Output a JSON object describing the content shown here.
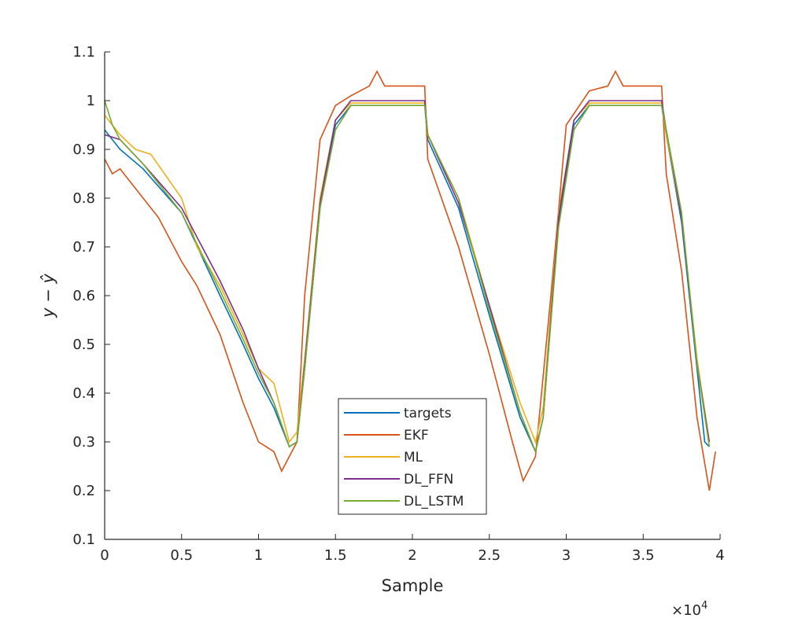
{
  "chart_data": {
    "type": "line",
    "xlabel": "Sample",
    "ylabel": "y − ŷ",
    "x_multiplier": "×10",
    "x_multiplier_exp": "4",
    "xlim": [
      0,
      4
    ],
    "ylim": [
      0.1,
      1.1
    ],
    "xticks": [
      "0",
      "0.5",
      "1",
      "1.5",
      "2",
      "2.5",
      "3",
      "3.5",
      "4"
    ],
    "yticks": [
      "0.1",
      "0.2",
      "0.3",
      "0.4",
      "0.5",
      "0.6",
      "0.7",
      "0.8",
      "0.9",
      "1",
      "1.1"
    ],
    "grid": false,
    "legend_position": "bottom-center",
    "series": [
      {
        "name": "targets",
        "color": "#0072BD",
        "points": [
          [
            0,
            0.94
          ],
          [
            0.1,
            0.9
          ],
          [
            0.25,
            0.86
          ],
          [
            0.5,
            0.77
          ],
          [
            0.75,
            0.6
          ],
          [
            0.9,
            0.5
          ],
          [
            1.0,
            0.43
          ],
          [
            1.1,
            0.37
          ],
          [
            1.2,
            0.29
          ],
          [
            1.25,
            0.3
          ],
          [
            1.3,
            0.45
          ],
          [
            1.4,
            0.78
          ],
          [
            1.5,
            0.95
          ],
          [
            1.6,
            0.99
          ],
          [
            2.08,
            0.99
          ],
          [
            2.1,
            0.92
          ],
          [
            2.3,
            0.78
          ],
          [
            2.5,
            0.56
          ],
          [
            2.7,
            0.35
          ],
          [
            2.8,
            0.28
          ],
          [
            2.85,
            0.35
          ],
          [
            2.95,
            0.75
          ],
          [
            3.05,
            0.95
          ],
          [
            3.15,
            0.99
          ],
          [
            3.62,
            0.99
          ],
          [
            3.65,
            0.93
          ],
          [
            3.75,
            0.75
          ],
          [
            3.85,
            0.45
          ],
          [
            3.9,
            0.3
          ],
          [
            3.93,
            0.29
          ]
        ]
      },
      {
        "name": "EKF",
        "color": "#D95319",
        "points": [
          [
            0,
            0.88
          ],
          [
            0.05,
            0.85
          ],
          [
            0.1,
            0.86
          ],
          [
            0.25,
            0.8
          ],
          [
            0.35,
            0.76
          ],
          [
            0.5,
            0.67
          ],
          [
            0.6,
            0.62
          ],
          [
            0.75,
            0.52
          ],
          [
            0.9,
            0.38
          ],
          [
            1.0,
            0.3
          ],
          [
            1.1,
            0.28
          ],
          [
            1.15,
            0.24
          ],
          [
            1.2,
            0.27
          ],
          [
            1.25,
            0.3
          ],
          [
            1.3,
            0.6
          ],
          [
            1.4,
            0.92
          ],
          [
            1.5,
            0.99
          ],
          [
            1.6,
            1.01
          ],
          [
            1.72,
            1.03
          ],
          [
            1.77,
            1.06
          ],
          [
            1.82,
            1.03
          ],
          [
            2.08,
            1.03
          ],
          [
            2.1,
            0.88
          ],
          [
            2.3,
            0.7
          ],
          [
            2.5,
            0.48
          ],
          [
            2.65,
            0.3
          ],
          [
            2.72,
            0.22
          ],
          [
            2.8,
            0.27
          ],
          [
            2.9,
            0.6
          ],
          [
            3.0,
            0.95
          ],
          [
            3.15,
            1.02
          ],
          [
            3.27,
            1.03
          ],
          [
            3.32,
            1.06
          ],
          [
            3.37,
            1.03
          ],
          [
            3.62,
            1.03
          ],
          [
            3.65,
            0.85
          ],
          [
            3.75,
            0.65
          ],
          [
            3.85,
            0.35
          ],
          [
            3.93,
            0.2
          ],
          [
            3.97,
            0.28
          ]
        ]
      },
      {
        "name": "ML",
        "color": "#EDB120",
        "points": [
          [
            0,
            0.97
          ],
          [
            0.1,
            0.93
          ],
          [
            0.2,
            0.9
          ],
          [
            0.3,
            0.89
          ],
          [
            0.5,
            0.8
          ],
          [
            0.6,
            0.7
          ],
          [
            0.75,
            0.62
          ],
          [
            0.9,
            0.52
          ],
          [
            1.0,
            0.45
          ],
          [
            1.1,
            0.42
          ],
          [
            1.2,
            0.3
          ],
          [
            1.25,
            0.32
          ],
          [
            1.3,
            0.47
          ],
          [
            1.4,
            0.8
          ],
          [
            1.5,
            0.96
          ],
          [
            1.6,
            0.995
          ],
          [
            2.08,
            0.995
          ],
          [
            2.1,
            0.93
          ],
          [
            2.3,
            0.8
          ],
          [
            2.5,
            0.58
          ],
          [
            2.7,
            0.38
          ],
          [
            2.8,
            0.3
          ],
          [
            2.85,
            0.37
          ],
          [
            2.95,
            0.77
          ],
          [
            3.05,
            0.96
          ],
          [
            3.15,
            0.995
          ],
          [
            3.62,
            0.995
          ],
          [
            3.65,
            0.93
          ],
          [
            3.75,
            0.76
          ],
          [
            3.85,
            0.47
          ],
          [
            3.93,
            0.3
          ]
        ]
      },
      {
        "name": "DL_FFN",
        "color": "#7E2F8E",
        "points": [
          [
            0,
            0.93
          ],
          [
            0.1,
            0.92
          ],
          [
            0.25,
            0.87
          ],
          [
            0.5,
            0.78
          ],
          [
            0.75,
            0.63
          ],
          [
            0.9,
            0.53
          ],
          [
            1.0,
            0.45
          ],
          [
            1.1,
            0.38
          ],
          [
            1.2,
            0.29
          ],
          [
            1.25,
            0.3
          ],
          [
            1.3,
            0.46
          ],
          [
            1.4,
            0.79
          ],
          [
            1.5,
            0.96
          ],
          [
            1.6,
            1.0
          ],
          [
            2.08,
            1.0
          ],
          [
            2.1,
            0.93
          ],
          [
            2.3,
            0.79
          ],
          [
            2.5,
            0.58
          ],
          [
            2.7,
            0.36
          ],
          [
            2.8,
            0.28
          ],
          [
            2.85,
            0.35
          ],
          [
            2.95,
            0.76
          ],
          [
            3.05,
            0.96
          ],
          [
            3.15,
            1.0
          ],
          [
            3.62,
            1.0
          ],
          [
            3.65,
            0.94
          ],
          [
            3.75,
            0.76
          ],
          [
            3.85,
            0.46
          ],
          [
            3.93,
            0.3
          ]
        ]
      },
      {
        "name": "DL_LSTM",
        "color": "#77AC30",
        "points": [
          [
            0,
            1.0
          ],
          [
            0.05,
            0.95
          ],
          [
            0.1,
            0.92
          ],
          [
            0.25,
            0.87
          ],
          [
            0.5,
            0.77
          ],
          [
            0.75,
            0.61
          ],
          [
            0.9,
            0.51
          ],
          [
            1.0,
            0.44
          ],
          [
            1.1,
            0.38
          ],
          [
            1.2,
            0.29
          ],
          [
            1.25,
            0.3
          ],
          [
            1.3,
            0.45
          ],
          [
            1.4,
            0.78
          ],
          [
            1.5,
            0.94
          ],
          [
            1.6,
            0.99
          ],
          [
            2.08,
            0.99
          ],
          [
            2.1,
            0.93
          ],
          [
            2.3,
            0.8
          ],
          [
            2.5,
            0.57
          ],
          [
            2.7,
            0.36
          ],
          [
            2.8,
            0.28
          ],
          [
            2.85,
            0.35
          ],
          [
            2.95,
            0.74
          ],
          [
            3.05,
            0.94
          ],
          [
            3.15,
            0.99
          ],
          [
            3.62,
            0.99
          ],
          [
            3.65,
            0.94
          ],
          [
            3.75,
            0.77
          ],
          [
            3.85,
            0.46
          ],
          [
            3.93,
            0.29
          ]
        ]
      }
    ]
  }
}
